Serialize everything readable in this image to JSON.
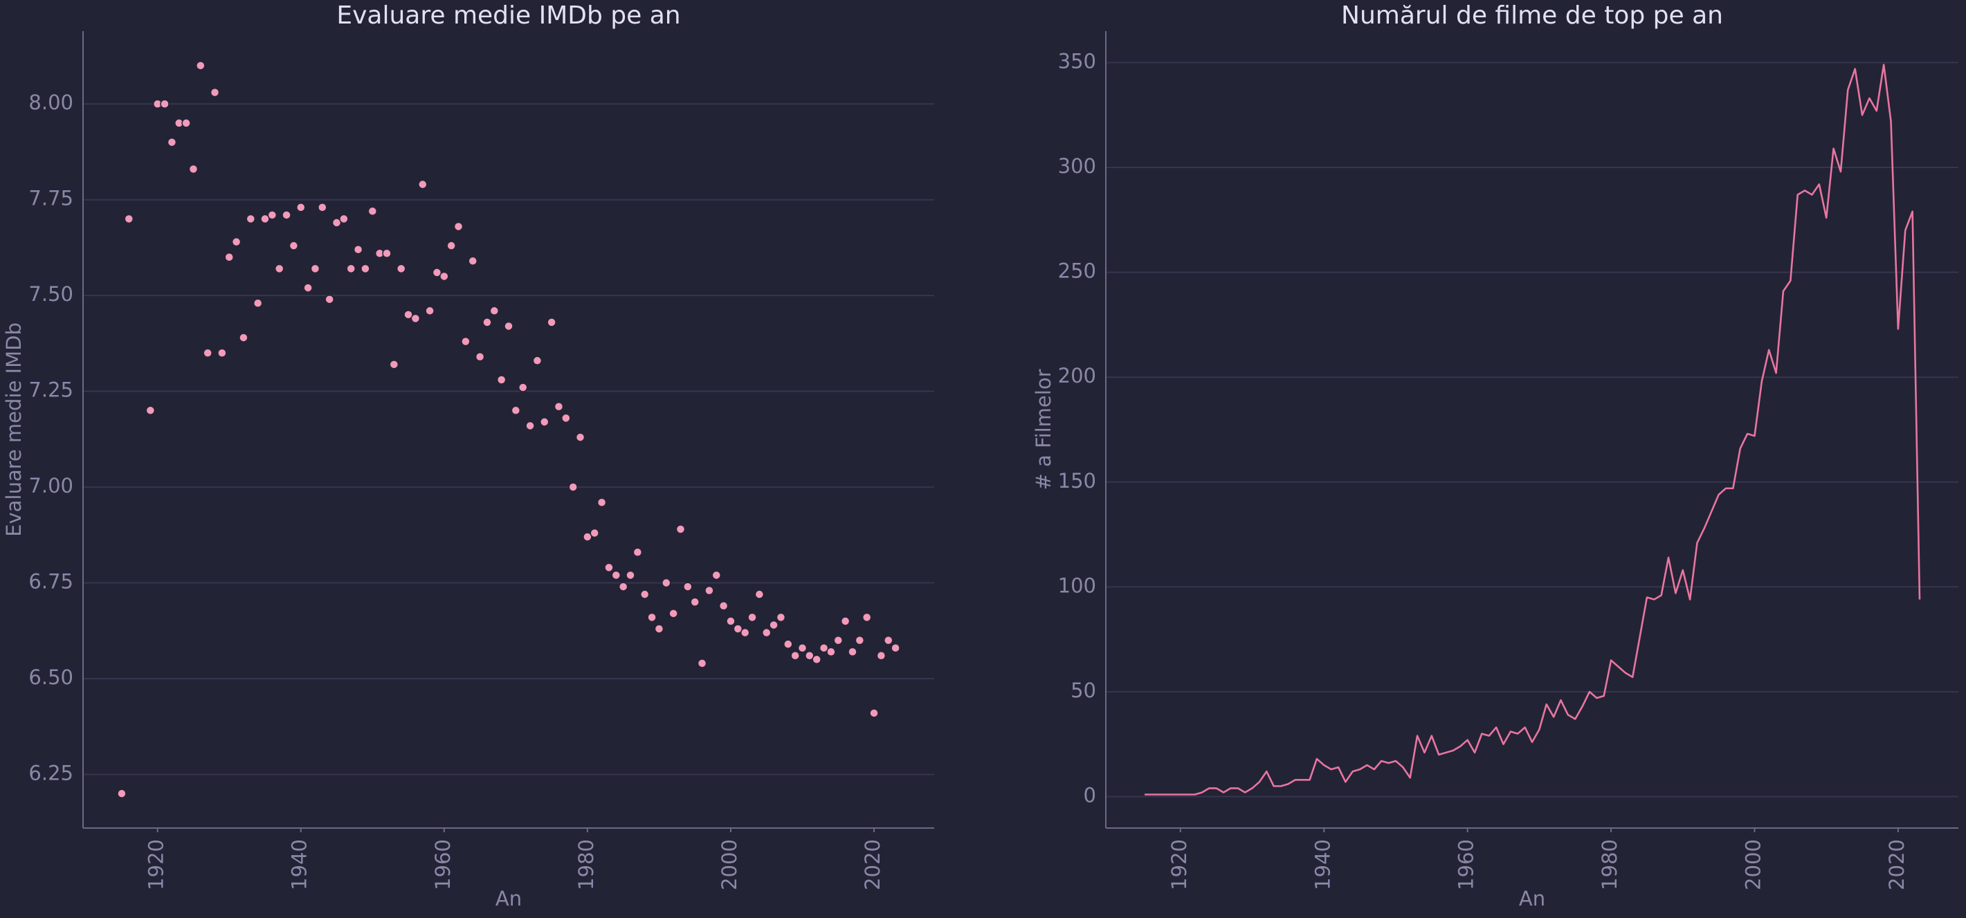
{
  "chart_data": [
    {
      "type": "scatter",
      "title": "Evaluare medie IMDb pe an",
      "xlabel": "An",
      "ylabel": "Evaluare medie IMDb",
      "color": "#f39ab9",
      "grid": true,
      "xlim": [
        1909.6,
        2028.4
      ],
      "xticks": [
        1920,
        1940,
        1960,
        1980,
        2000,
        2020
      ],
      "ylim": [
        6.11,
        8.19
      ],
      "yticks": [
        {
          "value": 6.25,
          "label": "6.25"
        },
        {
          "value": 6.5,
          "label": "6.50"
        },
        {
          "value": 6.75,
          "label": "6.75"
        },
        {
          "value": 7,
          "label": "7.00"
        },
        {
          "value": 7.25,
          "label": "7.25"
        },
        {
          "value": 7.5,
          "label": "7.50"
        },
        {
          "value": 7.75,
          "label": "7.75"
        },
        {
          "value": 8,
          "label": "8.00"
        }
      ],
      "x": [
        1915,
        1916,
        1919,
        1920,
        1921,
        1922,
        1923,
        1924,
        1925,
        1926,
        1927,
        1928,
        1929,
        1930,
        1931,
        1932,
        1933,
        1934,
        1935,
        1936,
        1937,
        1938,
        1939,
        1940,
        1941,
        1942,
        1943,
        1944,
        1945,
        1946,
        1947,
        1948,
        1949,
        1950,
        1951,
        1952,
        1953,
        1954,
        1955,
        1956,
        1957,
        1958,
        1959,
        1960,
        1961,
        1962,
        1963,
        1964,
        1965,
        1966,
        1967,
        1968,
        1969,
        1970,
        1971,
        1972,
        1973,
        1974,
        1975,
        1976,
        1977,
        1978,
        1979,
        1980,
        1981,
        1982,
        1983,
        1984,
        1985,
        1986,
        1987,
        1988,
        1989,
        1990,
        1991,
        1992,
        1993,
        1994,
        1995,
        1996,
        1997,
        1998,
        1999,
        2000,
        2001,
        2002,
        2003,
        2004,
        2005,
        2006,
        2007,
        2008,
        2009,
        2010,
        2011,
        2012,
        2013,
        2014,
        2015,
        2016,
        2017,
        2018,
        2019,
        2020,
        2021,
        2022,
        2023
      ],
      "values": [
        6.2,
        7.7,
        7.2,
        8.0,
        8.0,
        7.9,
        7.95,
        7.95,
        7.83,
        8.1,
        7.35,
        8.03,
        7.35,
        7.6,
        7.64,
        7.39,
        7.7,
        7.48,
        7.7,
        7.71,
        7.57,
        7.71,
        7.63,
        7.73,
        7.52,
        7.57,
        7.73,
        7.49,
        7.69,
        7.7,
        7.57,
        7.62,
        7.57,
        7.72,
        7.61,
        7.61,
        7.32,
        7.57,
        7.45,
        7.44,
        7.79,
        7.46,
        7.56,
        7.55,
        7.63,
        7.68,
        7.38,
        7.59,
        7.34,
        7.43,
        7.46,
        7.28,
        7.42,
        7.2,
        7.26,
        7.16,
        7.33,
        7.17,
        7.43,
        7.21,
        7.18,
        7.0,
        7.13,
        6.87,
        6.88,
        6.96,
        6.79,
        6.77,
        6.74,
        6.77,
        6.83,
        6.72,
        6.66,
        6.63,
        6.75,
        6.67,
        6.89,
        6.74,
        6.7,
        6.54,
        6.73,
        6.77,
        6.69,
        6.65,
        6.63,
        6.62,
        6.66,
        6.72,
        6.62,
        6.64,
        6.66,
        6.59,
        6.56,
        6.58,
        6.56,
        6.55,
        6.58,
        6.57,
        6.6,
        6.65,
        6.57,
        6.6,
        6.66,
        6.41,
        6.56,
        6.6,
        6.58
      ]
    },
    {
      "type": "line",
      "title": "Numărul de filme de top pe an",
      "xlabel": "An",
      "ylabel": "# a Filmelor",
      "color": "#e8769f",
      "grid": true,
      "xlim": [
        1909.6,
        2028.4
      ],
      "xticks": [
        1920,
        1940,
        1960,
        1980,
        2000,
        2020
      ],
      "ylim": [
        -15,
        365
      ],
      "yticks": [
        0,
        50,
        100,
        150,
        200,
        250,
        300,
        350
      ],
      "x": [
        1915,
        1916,
        1917,
        1918,
        1919,
        1920,
        1921,
        1922,
        1923,
        1924,
        1925,
        1926,
        1927,
        1928,
        1929,
        1930,
        1931,
        1932,
        1933,
        1934,
        1935,
        1936,
        1937,
        1938,
        1939,
        1940,
        1941,
        1942,
        1943,
        1944,
        1945,
        1946,
        1947,
        1948,
        1949,
        1950,
        1951,
        1952,
        1953,
        1954,
        1955,
        1956,
        1957,
        1958,
        1959,
        1960,
        1961,
        1962,
        1963,
        1964,
        1965,
        1966,
        1967,
        1968,
        1969,
        1970,
        1971,
        1972,
        1973,
        1974,
        1975,
        1976,
        1977,
        1978,
        1979,
        1980,
        1981,
        1982,
        1983,
        1984,
        1985,
        1986,
        1987,
        1988,
        1989,
        1990,
        1991,
        1992,
        1993,
        1994,
        1995,
        1996,
        1997,
        1998,
        1999,
        2000,
        2001,
        2002,
        2003,
        2004,
        2005,
        2006,
        2007,
        2008,
        2009,
        2010,
        2011,
        2012,
        2013,
        2014,
        2015,
        2016,
        2017,
        2018,
        2019,
        2020,
        2021,
        2022,
        2023
      ],
      "values": [
        1,
        1,
        1,
        1,
        1,
        1,
        1,
        1,
        2,
        4,
        4,
        2,
        4,
        4,
        2,
        4,
        7,
        12,
        5,
        5,
        6,
        8,
        8,
        8,
        18,
        15,
        13,
        14,
        7,
        12,
        13,
        15,
        13,
        17,
        16,
        17,
        14,
        9,
        29,
        21,
        29,
        20,
        21,
        22,
        24,
        27,
        21,
        30,
        29,
        33,
        25,
        31,
        30,
        33,
        26,
        32,
        44,
        38,
        46,
        39,
        37,
        43,
        50,
        47,
        48,
        65,
        62,
        59,
        57,
        76,
        95,
        94,
        96,
        114,
        97,
        108,
        94,
        121,
        128,
        136,
        144,
        147,
        147,
        166,
        173,
        172,
        198,
        213,
        202,
        241,
        246,
        287,
        289,
        287,
        292,
        276,
        309,
        298,
        337,
        347,
        325,
        333,
        327,
        349,
        322,
        223,
        270,
        279,
        94
      ]
    }
  ]
}
